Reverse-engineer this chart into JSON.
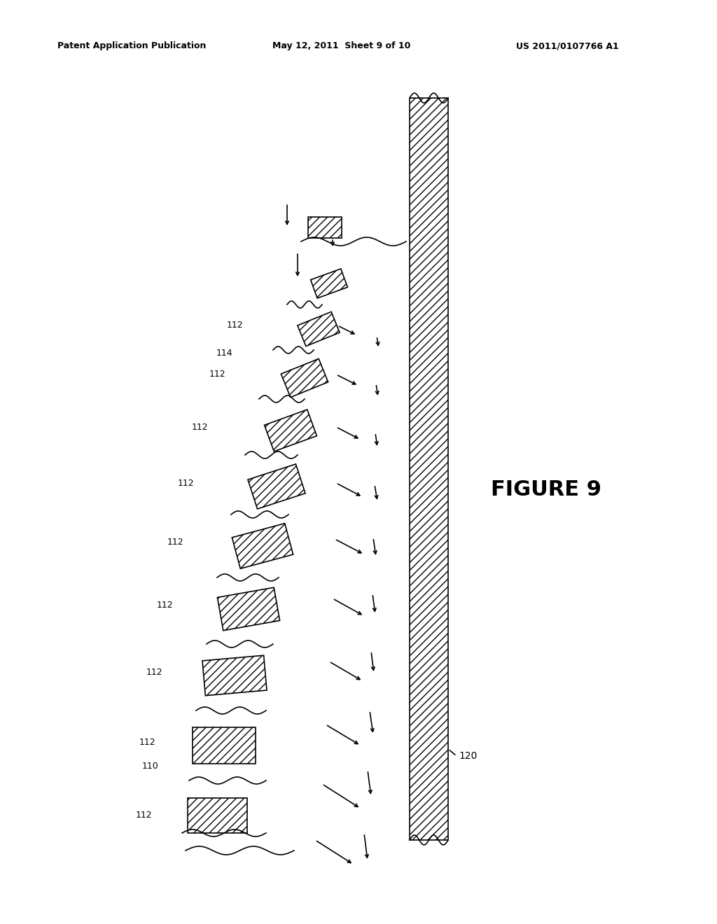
{
  "title": "",
  "header_left": "Patent Application Publication",
  "header_center": "May 12, 2011  Sheet 9 of 10",
  "header_right": "US 2011/0107766 A1",
  "figure_label": "FIGURE 9",
  "label_110": "110",
  "label_112": "112",
  "label_114": "114",
  "label_120": "120",
  "bg_color": "#ffffff",
  "line_color": "#000000",
  "hatch_color": "#000000"
}
